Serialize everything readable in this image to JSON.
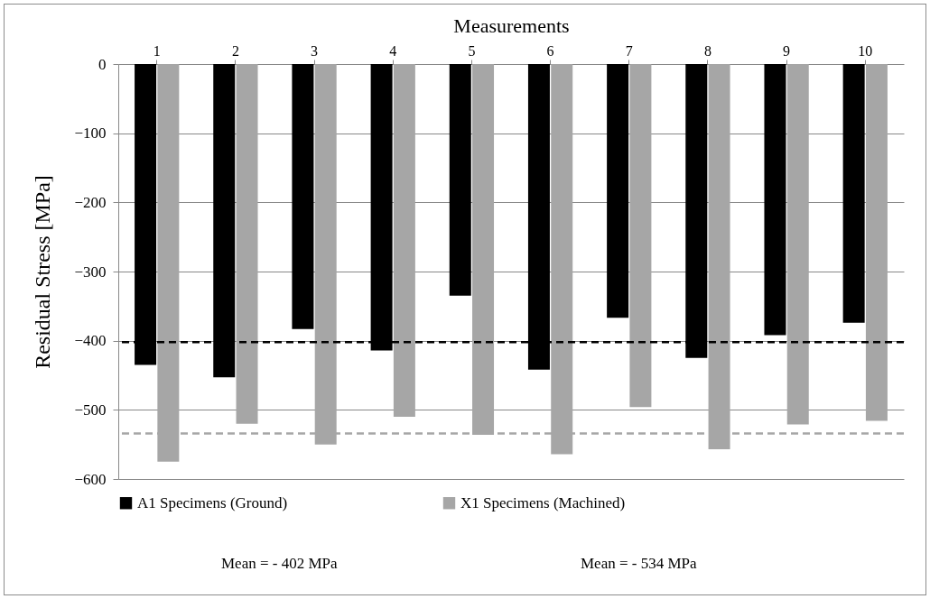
{
  "chart_data": {
    "type": "bar",
    "xlabel": "Measurements",
    "ylabel": "Residual Stress [MPa]",
    "categories": [
      "1",
      "2",
      "3",
      "4",
      "5",
      "6",
      "7",
      "8",
      "9",
      "10"
    ],
    "series": [
      {
        "name": "A1 Specimens (Ground)",
        "color": "#000000",
        "values": [
          -435,
          -453,
          -383,
          -414,
          -335,
          -442,
          -367,
          -425,
          -392,
          -374
        ]
      },
      {
        "name": "X1 Specimens (Machined)",
        "color": "#a6a6a6",
        "values": [
          -575,
          -520,
          -550,
          -510,
          -536,
          -564,
          -496,
          -557,
          -521,
          -516
        ]
      }
    ],
    "ylim": [
      -600,
      0
    ],
    "yticks": [
      -600,
      -500,
      -400,
      -300,
      -200,
      -100,
      0
    ],
    "grid": "y",
    "legend": "bottom",
    "ref_lines": [
      {
        "axis": "y",
        "value": -402,
        "color": "#000000",
        "line_style": "dashed"
      },
      {
        "axis": "y",
        "value": -534,
        "color": "#a6a6a6",
        "line_style": "dashed"
      }
    ],
    "annotations": [
      "Mean = - 402 MPa",
      "Mean = - 534 MPa"
    ]
  }
}
